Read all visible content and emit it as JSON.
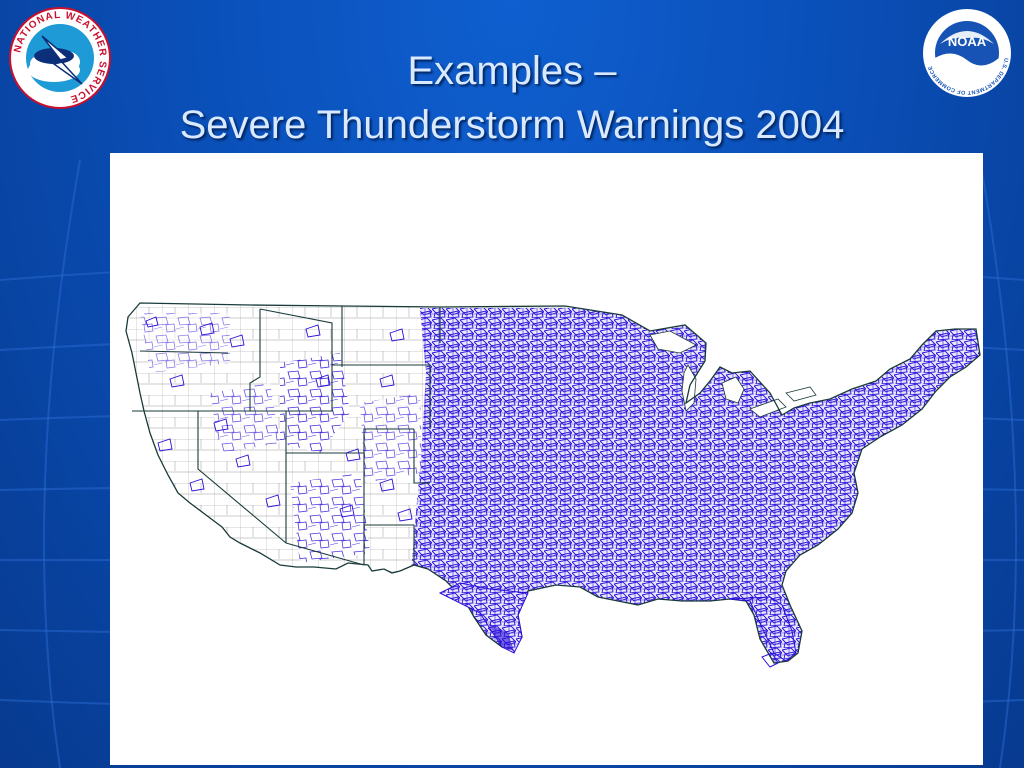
{
  "slide": {
    "title_line1": "Examples –",
    "title_line2": "Severe Thunderstorm Warnings 2004"
  },
  "logos": {
    "left": {
      "icon": "national-weather-service-logo",
      "ring_text": "NATIONAL WEATHER SERVICE"
    },
    "right": {
      "icon": "noaa-logo",
      "emblem_text": "NOAA",
      "ring_text": "U.S. DEPARTMENT OF COMMERCE"
    }
  },
  "map": {
    "icon": "us-warning-polygons-map",
    "colors": {
      "warnings": "#2a10d8",
      "boundaries": "#1a3a3a",
      "counties": "#8a8a8a",
      "background": "#ffffff"
    }
  },
  "colors": {
    "slide_background": "#0a4fb8",
    "title_text": "#d9e9ff"
  }
}
